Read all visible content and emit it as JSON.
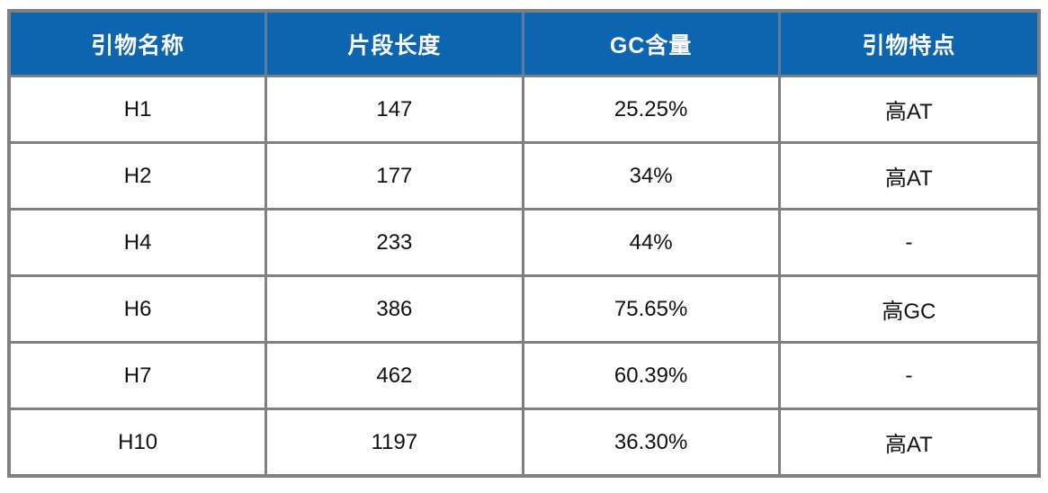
{
  "colors": {
    "header_bg": "#0d65b0",
    "header_text": "#ffffff",
    "grid_line": "#808080",
    "header_divider": "#5d7d9e",
    "body_text": "#111111",
    "page_background": "#ffffff"
  },
  "table": {
    "columns": [
      "引物名称",
      "片段长度",
      "GC含量",
      "引物特点"
    ],
    "rows": [
      [
        "H1",
        "147",
        "25.25%",
        "高AT"
      ],
      [
        "H2",
        "177",
        "34%",
        "高AT"
      ],
      [
        "H4",
        "233",
        "44%",
        "-"
      ],
      [
        "H6",
        "386",
        "75.65%",
        "高GC"
      ],
      [
        "H7",
        "462",
        "60.39%",
        "-"
      ],
      [
        "H10",
        "1197",
        "36.30%",
        "高AT"
      ]
    ]
  },
  "chart_data": {
    "type": "table",
    "title": "",
    "columns": [
      "引物名称",
      "片段长度",
      "GC含量",
      "引物特点"
    ],
    "rows": [
      {
        "引物名称": "H1",
        "片段长度": 147,
        "GC含量": "25.25%",
        "引物特点": "高AT"
      },
      {
        "引物名称": "H2",
        "片段长度": 177,
        "GC含量": "34%",
        "引物特点": "高AT"
      },
      {
        "引物名称": "H4",
        "片段长度": 233,
        "GC含量": "44%",
        "引物特点": "-"
      },
      {
        "引物名称": "H6",
        "片段长度": 386,
        "GC含量": "75.65%",
        "引物特点": "高GC"
      },
      {
        "引物名称": "H7",
        "片段长度": 462,
        "GC含量": "60.39%",
        "引物特点": "-"
      },
      {
        "引物名称": "H10",
        "片段长度": 1197,
        "GC含量": "36.30%",
        "引物特点": "高AT"
      }
    ],
    "legend_position": "none",
    "grid": true
  }
}
